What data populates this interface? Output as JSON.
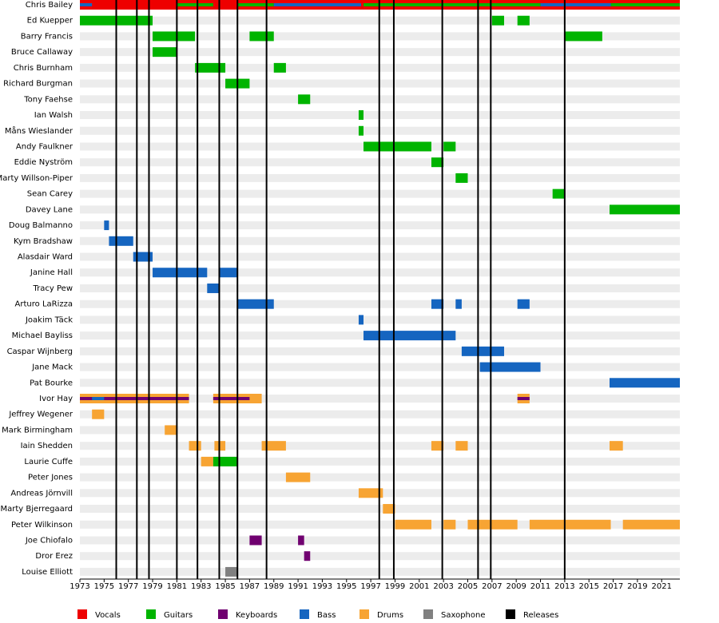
{
  "chart_data": {
    "type": "timeline",
    "xlim": [
      1973,
      2022.5
    ],
    "xticks": [
      1973,
      1975,
      1977,
      1979,
      1981,
      1983,
      1985,
      1987,
      1989,
      1991,
      1993,
      1995,
      1997,
      1999,
      2001,
      2003,
      2005,
      2007,
      2009,
      2011,
      2013,
      2015,
      2017,
      2019,
      2021
    ],
    "roles": [
      {
        "name": "Vocals",
        "color": "#ee0000"
      },
      {
        "name": "Guitars",
        "color": "#00b400"
      },
      {
        "name": "Keyboards",
        "color": "#700070"
      },
      {
        "name": "Bass",
        "color": "#1565c0"
      },
      {
        "name": "Drums",
        "color": "#f7a433"
      },
      {
        "name": "Saxophone",
        "color": "#808080"
      }
    ],
    "releases": {
      "name": "Releases",
      "color": "#000000",
      "values": [
        1976.0,
        1977.7,
        1978.7,
        1981.0,
        1982.7,
        1984.5,
        1986.0,
        1988.4,
        1997.7,
        1998.9,
        2002.9,
        2005.85,
        2006.9,
        2013.0
      ]
    },
    "members": [
      {
        "name": "Chris Bailey",
        "bars": [
          {
            "start": 1973,
            "end": 2022.5,
            "role": "Vocals"
          },
          {
            "start": 1981,
            "end": 1984,
            "role": "Guitars"
          },
          {
            "start": 1986,
            "end": 1989,
            "role": "Guitars"
          },
          {
            "start": 1996.4,
            "end": 2011,
            "role": "Guitars"
          },
          {
            "start": 2016.8,
            "end": 2022.5,
            "role": "Guitars"
          },
          {
            "start": 1973,
            "end": 1974,
            "role": "Bass"
          },
          {
            "start": 1989,
            "end": 1996.2,
            "role": "Bass"
          },
          {
            "start": 2011,
            "end": 2016.8,
            "role": "Bass"
          }
        ]
      },
      {
        "name": "Ed Kuepper",
        "bars": [
          {
            "start": 1973,
            "end": 1979,
            "role": "Guitars"
          },
          {
            "start": 2007,
            "end": 2008,
            "role": "Guitars"
          },
          {
            "start": 2009.1,
            "end": 2010.1,
            "role": "Guitars"
          }
        ]
      },
      {
        "name": "Barry Francis",
        "bars": [
          {
            "start": 1979,
            "end": 1982.5,
            "role": "Guitars"
          },
          {
            "start": 1987,
            "end": 1989,
            "role": "Guitars"
          },
          {
            "start": 2013,
            "end": 2016.1,
            "role": "Guitars"
          }
        ]
      },
      {
        "name": "Bruce Callaway",
        "bars": [
          {
            "start": 1979,
            "end": 1981,
            "role": "Guitars"
          }
        ]
      },
      {
        "name": "Chris Burnham",
        "bars": [
          {
            "start": 1982.5,
            "end": 1985,
            "role": "Guitars"
          },
          {
            "start": 1989,
            "end": 1990,
            "role": "Guitars"
          }
        ]
      },
      {
        "name": "Richard Burgman",
        "bars": [
          {
            "start": 1985,
            "end": 1987,
            "role": "Guitars"
          }
        ]
      },
      {
        "name": "Tony Faehse",
        "bars": [
          {
            "start": 1991,
            "end": 1992,
            "role": "Guitars"
          }
        ]
      },
      {
        "name": "Ian Walsh",
        "bars": [
          {
            "start": 1996,
            "end": 1996.4,
            "role": "Guitars"
          }
        ]
      },
      {
        "name": "Måns Wieslander",
        "bars": [
          {
            "start": 1996,
            "end": 1996.4,
            "role": "Guitars"
          }
        ]
      },
      {
        "name": "Andy Faulkner",
        "bars": [
          {
            "start": 1996.4,
            "end": 2002,
            "role": "Guitars"
          },
          {
            "start": 2003,
            "end": 2004,
            "role": "Guitars"
          }
        ]
      },
      {
        "name": "Eddie Nyström",
        "bars": [
          {
            "start": 2002,
            "end": 2003,
            "role": "Guitars"
          }
        ]
      },
      {
        "name": "Marty Willson-Piper",
        "bars": [
          {
            "start": 2004,
            "end": 2005,
            "role": "Guitars"
          }
        ]
      },
      {
        "name": "Sean Carey",
        "bars": [
          {
            "start": 2012,
            "end": 2013,
            "role": "Guitars"
          }
        ]
      },
      {
        "name": "Davey Lane",
        "bars": [
          {
            "start": 2016.7,
            "end": 2022.5,
            "role": "Guitars"
          }
        ]
      },
      {
        "name": "Doug Balmanno",
        "bars": [
          {
            "start": 1975,
            "end": 1975.4,
            "role": "Bass"
          }
        ]
      },
      {
        "name": "Kym Bradshaw",
        "bars": [
          {
            "start": 1975.4,
            "end": 1977.4,
            "role": "Bass"
          }
        ]
      },
      {
        "name": "Alasdair Ward",
        "bars": [
          {
            "start": 1977.4,
            "end": 1979,
            "role": "Bass"
          }
        ]
      },
      {
        "name": "Janine Hall",
        "bars": [
          {
            "start": 1979,
            "end": 1983.5,
            "role": "Bass"
          },
          {
            "start": 1984.5,
            "end": 1986,
            "role": "Bass"
          }
        ]
      },
      {
        "name": "Tracy Pew",
        "bars": [
          {
            "start": 1983.5,
            "end": 1984.5,
            "role": "Bass"
          }
        ]
      },
      {
        "name": "Arturo LaRizza",
        "bars": [
          {
            "start": 1986,
            "end": 1989,
            "role": "Bass"
          },
          {
            "start": 2002,
            "end": 2003,
            "role": "Bass"
          },
          {
            "start": 2004,
            "end": 2004.5,
            "role": "Bass"
          },
          {
            "start": 2009.1,
            "end": 2010.1,
            "role": "Bass"
          }
        ]
      },
      {
        "name": "Joakim Täck",
        "bars": [
          {
            "start": 1996,
            "end": 1996.4,
            "role": "Bass"
          }
        ]
      },
      {
        "name": "Michael Bayliss",
        "bars": [
          {
            "start": 1996.4,
            "end": 2004,
            "role": "Bass"
          }
        ]
      },
      {
        "name": "Caspar Wijnberg",
        "bars": [
          {
            "start": 2004.5,
            "end": 2008,
            "role": "Bass"
          }
        ]
      },
      {
        "name": "Jane Mack",
        "bars": [
          {
            "start": 2006,
            "end": 2011,
            "role": "Bass"
          }
        ]
      },
      {
        "name": "Pat Bourke",
        "bars": [
          {
            "start": 2016.7,
            "end": 2022.5,
            "role": "Bass"
          }
        ]
      },
      {
        "name": "Ivor Hay",
        "bars": [
          {
            "start": 1973,
            "end": 1982,
            "role": "Drums"
          },
          {
            "start": 1984,
            "end": 1988,
            "role": "Drums"
          },
          {
            "start": 2009.1,
            "end": 2010.1,
            "role": "Drums"
          },
          {
            "start": 1973,
            "end": 1982,
            "role": "Keyboards"
          },
          {
            "start": 1984,
            "end": 1987,
            "role": "Keyboards"
          },
          {
            "start": 2009.1,
            "end": 2010.1,
            "role": "Keyboards"
          },
          {
            "start": 1974,
            "end": 1975,
            "role": "Bass"
          }
        ]
      },
      {
        "name": "Jeffrey Wegener",
        "bars": [
          {
            "start": 1974,
            "end": 1975,
            "role": "Drums"
          }
        ]
      },
      {
        "name": "Mark Birmingham",
        "bars": [
          {
            "start": 1980,
            "end": 1981,
            "role": "Drums"
          }
        ]
      },
      {
        "name": "Iain Shedden",
        "bars": [
          {
            "start": 1982,
            "end": 1983,
            "role": "Drums"
          },
          {
            "start": 1984.1,
            "end": 1985,
            "role": "Drums"
          },
          {
            "start": 1988,
            "end": 1990,
            "role": "Drums"
          },
          {
            "start": 2002,
            "end": 2003,
            "role": "Drums"
          },
          {
            "start": 2004,
            "end": 2005,
            "role": "Drums"
          },
          {
            "start": 2016.7,
            "end": 2017.8,
            "role": "Drums"
          }
        ]
      },
      {
        "name": "Laurie Cuffe",
        "bars": [
          {
            "start": 1983,
            "end": 1984,
            "role": "Drums"
          },
          {
            "start": 1984,
            "end": 1986,
            "role": "Guitars"
          }
        ]
      },
      {
        "name": "Peter Jones",
        "bars": [
          {
            "start": 1990,
            "end": 1992,
            "role": "Drums"
          }
        ]
      },
      {
        "name": "Andreas Jörnvill",
        "bars": [
          {
            "start": 1996,
            "end": 1998,
            "role": "Drums"
          }
        ]
      },
      {
        "name": "Marty Bjerregaard",
        "bars": [
          {
            "start": 1998,
            "end": 1999,
            "role": "Drums"
          }
        ]
      },
      {
        "name": "Peter Wilkinson",
        "bars": [
          {
            "start": 1999,
            "end": 2002,
            "role": "Drums"
          },
          {
            "start": 2003,
            "end": 2004,
            "role": "Drums"
          },
          {
            "start": 2005,
            "end": 2009.1,
            "role": "Drums"
          },
          {
            "start": 2010.1,
            "end": 2016.8,
            "role": "Drums"
          },
          {
            "start": 2017.8,
            "end": 2022.5,
            "role": "Drums"
          }
        ]
      },
      {
        "name": "Joe Chiofalo",
        "bars": [
          {
            "start": 1987,
            "end": 1988,
            "role": "Keyboards"
          },
          {
            "start": 1991,
            "end": 1991.5,
            "role": "Keyboards"
          }
        ]
      },
      {
        "name": "Dror Erez",
        "bars": [
          {
            "start": 1991.5,
            "end": 1992,
            "role": "Keyboards"
          }
        ]
      },
      {
        "name": "Louise Elliott",
        "bars": [
          {
            "start": 1985,
            "end": 1986,
            "role": "Saxophone"
          }
        ]
      }
    ]
  }
}
